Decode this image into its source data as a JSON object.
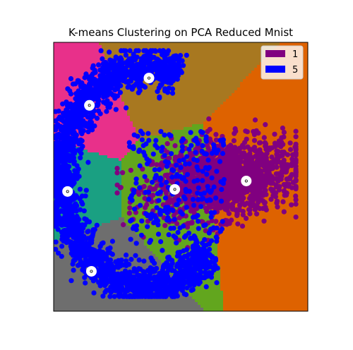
{
  "chart_data": {
    "type": "scatter",
    "title": "K-means Clustering on PCA Reduced Mnist",
    "xlabel": "",
    "ylabel": "",
    "xlim": [
      -6.4,
      6.4
    ],
    "ylim": [
      -6.0,
      6.8
    ],
    "grid": false,
    "ticks_visible": false,
    "legend": {
      "placement": "top-right",
      "entries": [
        {
          "label": "1",
          "color": "#800080"
        },
        {
          "label": "5",
          "color": "#0000ff"
        }
      ]
    },
    "region_colors": [
      "#a87820",
      "#e8308a",
      "#1aa082",
      "#6e6e6e",
      "#62a61e",
      "#de6200"
    ],
    "centroids": [
      [
        -1.6,
        5.1
      ],
      [
        -4.6,
        3.8
      ],
      [
        -5.7,
        -0.3
      ],
      [
        -4.5,
        -4.1
      ],
      [
        -0.3,
        -0.2
      ],
      [
        3.3,
        0.2
      ]
    ],
    "series": [
      {
        "name": "1",
        "color": "#800080",
        "shape": "elongated dense cloud",
        "x_range": [
          -3.2,
          5.8
        ],
        "y_range": [
          -4.3,
          3.2
        ],
        "center": [
          2.2,
          0.3
        ]
      },
      {
        "name": "5",
        "color": "#0000ff",
        "shape": "arc / horseshoe opening to the right",
        "x_range": [
          -6.3,
          4.0
        ],
        "y_range": [
          -5.3,
          6.4
        ],
        "center": [
          -2.3,
          0.6
        ]
      }
    ]
  }
}
